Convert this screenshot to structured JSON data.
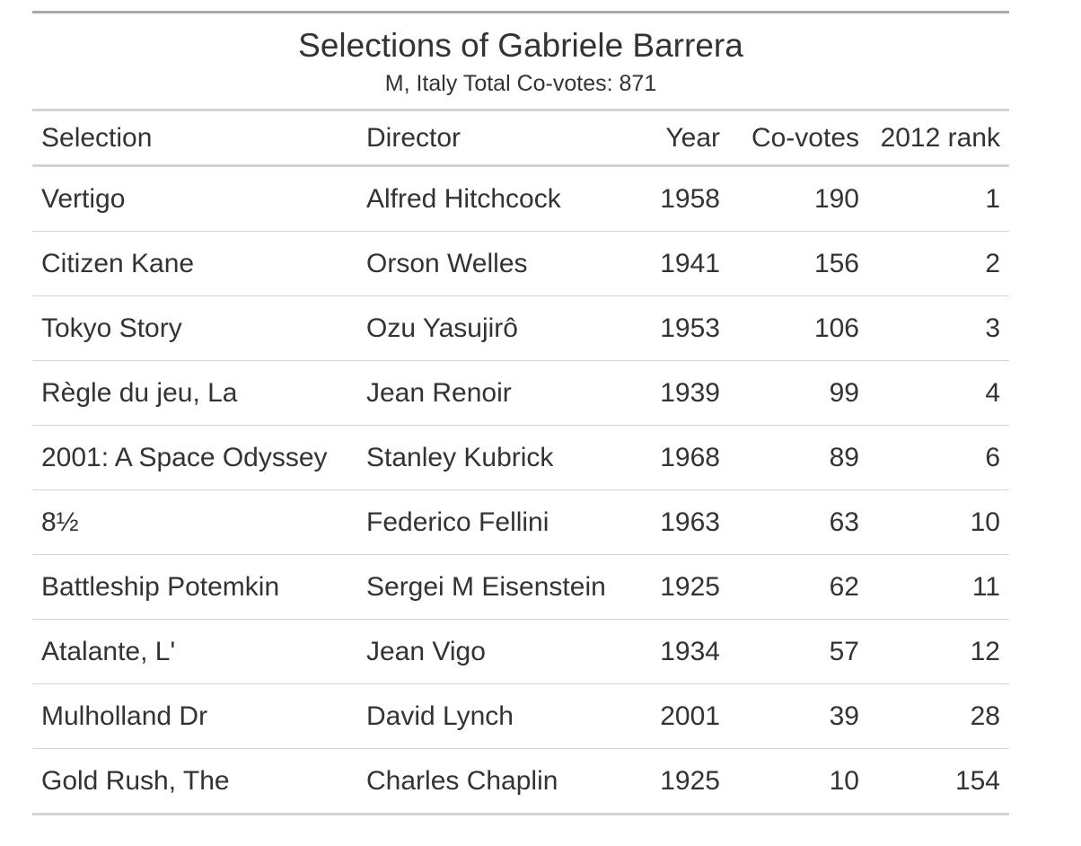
{
  "chart_data": {
    "type": "table",
    "title": "Selections of Gabriele Barrera",
    "subtitle": "M, Italy Total Co-votes: 871",
    "columns": [
      "Selection",
      "Director",
      "Year",
      "Co-votes",
      "2012 rank"
    ],
    "rows": [
      {
        "selection": "Vertigo",
        "director": "Alfred Hitchcock",
        "year": "1958",
        "covotes": "190",
        "rank": "1"
      },
      {
        "selection": "Citizen Kane",
        "director": "Orson Welles",
        "year": "1941",
        "covotes": "156",
        "rank": "2"
      },
      {
        "selection": "Tokyo Story",
        "director": "Ozu Yasujirô",
        "year": "1953",
        "covotes": "106",
        "rank": "3"
      },
      {
        "selection": "Règle du jeu, La",
        "director": "Jean Renoir",
        "year": "1939",
        "covotes": "99",
        "rank": "4"
      },
      {
        "selection": "2001: A Space Odyssey",
        "director": "Stanley Kubrick",
        "year": "1968",
        "covotes": "89",
        "rank": "6"
      },
      {
        "selection": "8½",
        "director": "Federico Fellini",
        "year": "1963",
        "covotes": "63",
        "rank": "10"
      },
      {
        "selection": "Battleship Potemkin",
        "director": "Sergei M Eisenstein",
        "year": "1925",
        "covotes": "62",
        "rank": "11"
      },
      {
        "selection": "Atalante, L'",
        "director": "Jean Vigo",
        "year": "1934",
        "covotes": "57",
        "rank": "12"
      },
      {
        "selection": "Mulholland Dr",
        "director": "David Lynch",
        "year": "2001",
        "covotes": "39",
        "rank": "28"
      },
      {
        "selection": "Gold Rush, The",
        "director": "Charles Chaplin",
        "year": "1925",
        "covotes": "10",
        "rank": "154"
      }
    ]
  }
}
